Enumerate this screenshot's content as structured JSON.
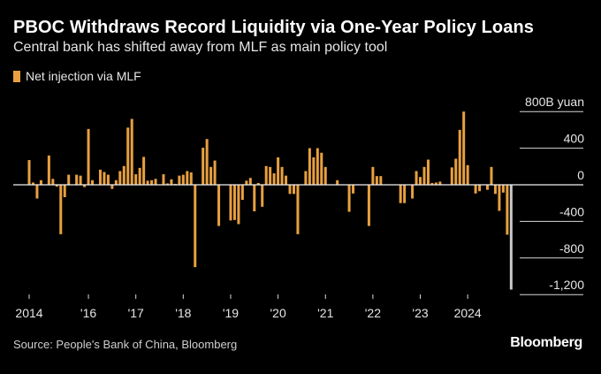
{
  "header": {
    "title": "PBOC Withdraws Record Liquidity via One-Year Policy Loans",
    "subtitle": "Central bank has shifted away from MLF as main policy tool"
  },
  "footer": {
    "source": "Source: People's Bank of China, Bloomberg",
    "logo": "Bloomberg"
  },
  "chart_data": {
    "type": "bar",
    "title": "PBOC Withdraws Record Liquidity via One-Year Policy Loans",
    "subtitle": "Central bank has shifted away from MLF as main policy tool",
    "series": [
      {
        "name": "Net injection via MLF",
        "color": "#e8a040",
        "start": "2014-10",
        "frequency": "monthly",
        "values": [
          270,
          25,
          -150,
          50,
          0,
          320,
          65,
          -20,
          -540,
          -135,
          110,
          0,
          110,
          100,
          -25,
          610,
          50,
          0,
          165,
          140,
          110,
          -45,
          50,
          150,
          205,
          625,
          720,
          115,
          185,
          305,
          45,
          50,
          65,
          0,
          115,
          15,
          60,
          10,
          100,
          110,
          150,
          135,
          -900,
          0,
          405,
          500,
          195,
          265,
          -450,
          0,
          0,
          -390,
          -385,
          -430,
          -165,
          45,
          75,
          -290,
          20,
          -240,
          205,
          195,
          125,
          300,
          195,
          100,
          -100,
          -100,
          -540,
          0,
          150,
          400,
          300,
          400,
          350,
          195,
          0,
          0,
          50,
          0,
          0,
          -295,
          -95,
          0,
          0,
          0,
          -450,
          195,
          95,
          95,
          0,
          0,
          0,
          0,
          -200,
          -200,
          0,
          -150,
          150,
          85,
          195,
          275,
          20,
          25,
          35,
          0,
          0,
          190,
          285,
          600,
          800,
          215,
          0,
          -95,
          -70,
          0,
          -55,
          195,
          -100,
          -285,
          -85,
          -545,
          -1145
        ]
      }
    ],
    "highlight": {
      "date": "2024-12",
      "color": "#c8c8c8"
    },
    "ylabel_unit": "800B yuan",
    "yticks": [
      800,
      400,
      0,
      -400,
      -800,
      -1200
    ],
    "ytick_labels": [
      "800B yuan",
      "400",
      "0",
      "-400",
      "-800",
      "-1,200"
    ],
    "ylim": [
      -1250,
      800
    ],
    "xtick_labels": [
      "2014",
      "'16",
      "'17",
      "'18",
      "'19",
      "'20",
      "'21",
      "'22",
      "'23",
      "2024"
    ],
    "xtick_dates": [
      "2014-10",
      "2016-01",
      "2017-01",
      "2018-01",
      "2019-01",
      "2020-01",
      "2021-01",
      "2022-01",
      "2023-01",
      "2024-01"
    ],
    "legend": "top-left",
    "grid": false
  }
}
